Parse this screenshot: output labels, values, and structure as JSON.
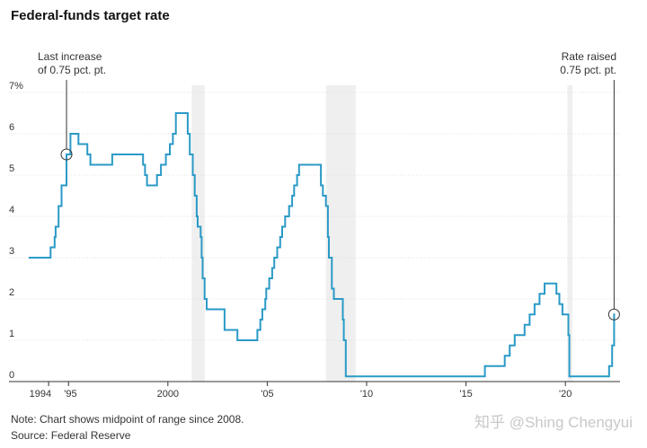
{
  "chart_data": {
    "type": "line",
    "title": "Federal-funds target rate",
    "ylim": [
      0,
      7
    ],
    "xlim": [
      1993.0,
      2022.75
    ],
    "y_ticks": [
      {
        "value": 7,
        "label": "7%"
      },
      {
        "value": 6,
        "label": "6"
      },
      {
        "value": 5,
        "label": "5"
      },
      {
        "value": 4,
        "label": "4"
      },
      {
        "value": 3,
        "label": "3"
      },
      {
        "value": 2,
        "label": "2"
      },
      {
        "value": 1,
        "label": "1"
      },
      {
        "value": 0,
        "label": "0"
      }
    ],
    "x_ticks": [
      {
        "value": 1994,
        "label": "1994"
      },
      {
        "value": 1995,
        "label": "'95"
      },
      {
        "value": 2000,
        "label": "2000"
      },
      {
        "value": 2005,
        "label": "'05"
      },
      {
        "value": 2010,
        "label": "'10"
      },
      {
        "value": 2015,
        "label": "'15"
      },
      {
        "value": 2020,
        "label": "'20"
      }
    ],
    "recessions": [
      [
        2001.2,
        2001.85
      ],
      [
        2007.95,
        2009.45
      ],
      [
        2020.1,
        2020.35
      ]
    ],
    "line_color": "#2a9ac7",
    "shade_color": "#efefef",
    "grid": true,
    "series": [
      {
        "step": true,
        "points": [
          [
            1993.0,
            3.0
          ],
          [
            1994.1,
            3.25
          ],
          [
            1994.3,
            3.5
          ],
          [
            1994.35,
            3.75
          ],
          [
            1994.5,
            4.25
          ],
          [
            1994.65,
            4.75
          ],
          [
            1994.9,
            5.5
          ],
          [
            1995.1,
            6.0
          ],
          [
            1995.5,
            5.75
          ],
          [
            1995.95,
            5.5
          ],
          [
            1996.1,
            5.25
          ],
          [
            1997.2,
            5.5
          ],
          [
            1998.75,
            5.25
          ],
          [
            1998.85,
            5.0
          ],
          [
            1998.95,
            4.75
          ],
          [
            1999.45,
            5.0
          ],
          [
            1999.65,
            5.25
          ],
          [
            1999.9,
            5.5
          ],
          [
            2000.1,
            5.75
          ],
          [
            2000.25,
            6.0
          ],
          [
            2000.4,
            6.5
          ],
          [
            2001.0,
            6.0
          ],
          [
            2001.1,
            5.5
          ],
          [
            2001.25,
            5.0
          ],
          [
            2001.35,
            4.5
          ],
          [
            2001.45,
            4.0
          ],
          [
            2001.5,
            3.75
          ],
          [
            2001.65,
            3.5
          ],
          [
            2001.7,
            3.0
          ],
          [
            2001.75,
            2.5
          ],
          [
            2001.85,
            2.0
          ],
          [
            2001.95,
            1.75
          ],
          [
            2002.85,
            1.25
          ],
          [
            2003.5,
            1.0
          ],
          [
            2004.5,
            1.25
          ],
          [
            2004.65,
            1.5
          ],
          [
            2004.75,
            1.75
          ],
          [
            2004.9,
            2.0
          ],
          [
            2004.95,
            2.25
          ],
          [
            2005.1,
            2.5
          ],
          [
            2005.25,
            2.75
          ],
          [
            2005.35,
            3.0
          ],
          [
            2005.5,
            3.25
          ],
          [
            2005.65,
            3.5
          ],
          [
            2005.75,
            3.75
          ],
          [
            2005.9,
            4.0
          ],
          [
            2006.1,
            4.25
          ],
          [
            2006.25,
            4.5
          ],
          [
            2006.35,
            4.75
          ],
          [
            2006.5,
            5.0
          ],
          [
            2006.6,
            5.25
          ],
          [
            2007.7,
            4.75
          ],
          [
            2007.8,
            4.5
          ],
          [
            2007.95,
            4.25
          ],
          [
            2008.05,
            3.5
          ],
          [
            2008.1,
            3.0
          ],
          [
            2008.25,
            2.25
          ],
          [
            2008.35,
            2.0
          ],
          [
            2008.8,
            1.5
          ],
          [
            2008.85,
            1.0
          ],
          [
            2008.95,
            0.125
          ],
          [
            2015.95,
            0.375
          ],
          [
            2016.95,
            0.625
          ],
          [
            2017.2,
            0.875
          ],
          [
            2017.45,
            1.125
          ],
          [
            2017.95,
            1.375
          ],
          [
            2018.2,
            1.625
          ],
          [
            2018.45,
            1.875
          ],
          [
            2018.7,
            2.125
          ],
          [
            2018.95,
            2.375
          ],
          [
            2019.55,
            2.125
          ],
          [
            2019.7,
            1.875
          ],
          [
            2019.85,
            1.625
          ],
          [
            2020.15,
            1.125
          ],
          [
            2020.2,
            0.125
          ],
          [
            2022.2,
            0.375
          ],
          [
            2022.35,
            0.875
          ],
          [
            2022.45,
            1.625
          ],
          [
            2022.5,
            1.625
          ]
        ]
      }
    ],
    "annotations": [
      {
        "lines": [
          "Last increase",
          "of 0.75 pct. pt."
        ],
        "x": 1994.9,
        "y": 5.5,
        "anchor": "start"
      },
      {
        "lines": [
          "Rate raised",
          "0.75 pct. pt."
        ],
        "x": 2022.45,
        "y": 1.625,
        "anchor": "end"
      }
    ]
  },
  "notes": {
    "note": "Note: Chart shows midpoint of range since 2008.",
    "source": "Source: Federal Reserve"
  },
  "watermark": "知乎 @Shing Chengyui"
}
